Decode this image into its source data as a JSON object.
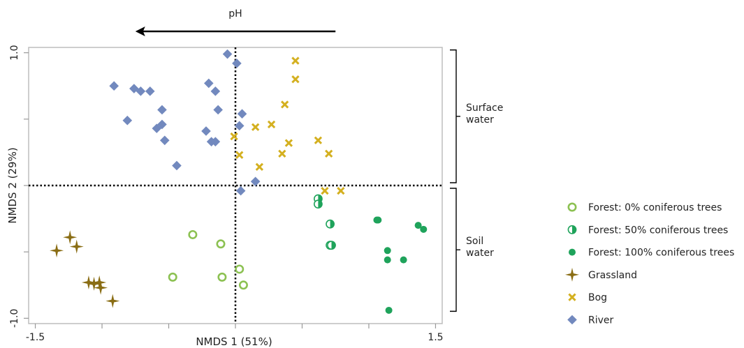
{
  "chart_data": {
    "type": "scatter",
    "title": "",
    "xlabel": "NMDS 1 (51%)",
    "ylabel": "NMDS 2 (29%)",
    "xlim": [
      -1.55,
      1.55
    ],
    "ylim": [
      -1.04,
      1.04
    ],
    "x_ticks": [
      -1.5,
      -1.0,
      -0.5,
      0.0,
      0.5,
      1.0,
      1.5
    ],
    "x_tick_labels": [
      "-1.5",
      "",
      "",
      "",
      "",
      "",
      "1.5"
    ],
    "y_ticks": [
      -1.0,
      -0.5,
      0.0,
      0.5,
      1.0
    ],
    "y_tick_labels": [
      "-1.0",
      "",
      "",
      "",
      "1.0"
    ],
    "grid": false,
    "reference_lines": {
      "x": 0.0,
      "y": 0.0,
      "style": "dotted"
    },
    "arrow": {
      "label": "pH",
      "direction": "left",
      "from_x": 0.75,
      "to_x": -0.75
    },
    "groups": [
      {
        "label": "Surface\nwater",
        "y_range": [
          0.0,
          1.0
        ]
      },
      {
        "label": "Soil\nwater",
        "y_range": [
          -1.0,
          0.0
        ]
      }
    ],
    "legend_position": "right",
    "series": [
      {
        "name": "Forest: 0% coniferous trees",
        "marker": "ring",
        "color": "#8cc152",
        "points": [
          [
            -0.32,
            -0.37
          ],
          [
            -0.11,
            -0.44
          ],
          [
            -0.47,
            -0.69
          ],
          [
            -0.1,
            -0.69
          ],
          [
            0.03,
            -0.63
          ],
          [
            0.06,
            -0.75
          ]
        ]
      },
      {
        "name": "Forest: 50% coniferous trees",
        "marker": "half",
        "color": "#1fa35b",
        "points": [
          [
            0.62,
            -0.1
          ],
          [
            0.62,
            -0.14
          ],
          [
            0.71,
            -0.29
          ],
          [
            0.71,
            -0.45
          ],
          [
            0.72,
            -0.45
          ]
        ]
      },
      {
        "name": "Forest: 100% coniferous trees",
        "marker": "dot",
        "color": "#1fa35b",
        "points": [
          [
            1.06,
            -0.26
          ],
          [
            1.07,
            -0.26
          ],
          [
            1.37,
            -0.3
          ],
          [
            1.41,
            -0.33
          ],
          [
            1.14,
            -0.49
          ],
          [
            1.14,
            -0.56
          ],
          [
            1.26,
            -0.56
          ],
          [
            1.15,
            -0.94
          ]
        ]
      },
      {
        "name": "Grassland",
        "marker": "star",
        "color": "#8a6d14",
        "points": [
          [
            -1.24,
            -0.39
          ],
          [
            -1.19,
            -0.46
          ],
          [
            -1.34,
            -0.49
          ],
          [
            -1.1,
            -0.73
          ],
          [
            -1.06,
            -0.74
          ],
          [
            -1.02,
            -0.73
          ],
          [
            -1.01,
            -0.77
          ],
          [
            -0.92,
            -0.87
          ]
        ]
      },
      {
        "name": "Bog",
        "marker": "cross",
        "color": "#d4b020",
        "points": [
          [
            0.45,
            0.94
          ],
          [
            0.45,
            0.8
          ],
          [
            0.37,
            0.61
          ],
          [
            0.27,
            0.46
          ],
          [
            0.15,
            0.44
          ],
          [
            -0.01,
            0.37
          ],
          [
            0.4,
            0.32
          ],
          [
            0.62,
            0.34
          ],
          [
            0.7,
            0.24
          ],
          [
            0.35,
            0.24
          ],
          [
            0.03,
            0.23
          ],
          [
            0.18,
            0.14
          ],
          [
            0.67,
            -0.04
          ],
          [
            0.79,
            -0.04
          ]
        ]
      },
      {
        "name": "River",
        "marker": "diamond",
        "color": "#7289be",
        "points": [
          [
            -0.06,
            0.99
          ],
          [
            0.01,
            0.92
          ],
          [
            -0.91,
            0.75
          ],
          [
            -0.76,
            0.73
          ],
          [
            -0.71,
            0.71
          ],
          [
            -0.64,
            0.71
          ],
          [
            -0.2,
            0.77
          ],
          [
            -0.15,
            0.71
          ],
          [
            -0.55,
            0.57
          ],
          [
            -0.13,
            0.57
          ],
          [
            0.05,
            0.54
          ],
          [
            -0.81,
            0.49
          ],
          [
            -0.55,
            0.46
          ],
          [
            -0.59,
            0.43
          ],
          [
            -0.22,
            0.41
          ],
          [
            0.03,
            0.45
          ],
          [
            -0.53,
            0.34
          ],
          [
            -0.18,
            0.33
          ],
          [
            -0.15,
            0.33
          ],
          [
            -0.44,
            0.15
          ],
          [
            0.15,
            0.03
          ],
          [
            0.04,
            -0.04
          ]
        ]
      }
    ]
  }
}
